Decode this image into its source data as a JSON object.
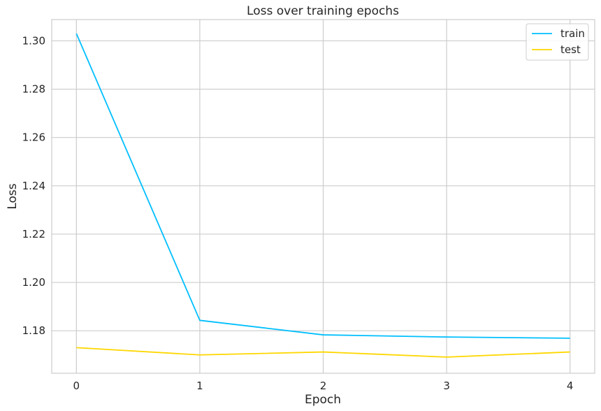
{
  "chart_data": {
    "type": "line",
    "title": "Loss over training epochs",
    "xlabel": "Epoch",
    "ylabel": "Loss",
    "x": [
      0,
      1,
      2,
      3,
      4
    ],
    "xticks": [
      "0",
      "1",
      "2",
      "3",
      "4"
    ],
    "yticks": [
      "1.18",
      "1.20",
      "1.22",
      "1.24",
      "1.26",
      "1.28",
      "1.30"
    ],
    "xlim": [
      -0.2,
      4.2
    ],
    "ylim": [
      1.1624,
      1.3088
    ],
    "grid": true,
    "legend_position": "top-right",
    "series": [
      {
        "name": "train",
        "color": "#00BFFF",
        "values": [
          1.303,
          1.1843,
          1.1783,
          1.1774,
          1.1769
        ]
      },
      {
        "name": "test",
        "color": "#FFD700",
        "values": [
          1.173,
          1.17,
          1.1712,
          1.1691,
          1.1712
        ]
      }
    ]
  }
}
